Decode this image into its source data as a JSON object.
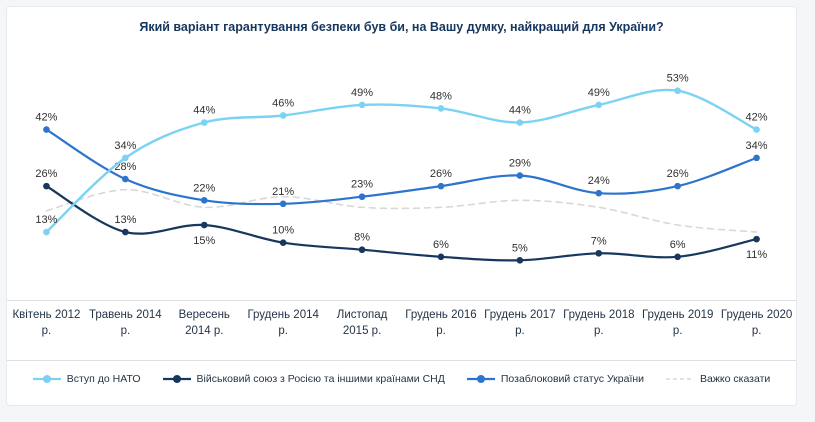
{
  "title": "Який варіант гарантування безпеки був би, на Вашу думку, найкращий для України?",
  "chart_data": {
    "type": "line",
    "title": "Який варіант гарантування безпеки був би, на Вашу думку, найкращий для України?",
    "xlabel": "",
    "ylabel": "",
    "ylim": [
      0,
      60
    ],
    "grid": false,
    "legend_position": "bottom",
    "label_suffix": "%",
    "categories": [
      "Квітень 2012 р.",
      "Травень 2014 р.",
      "Вересень 2014 р.",
      "Грудень 2014 р.",
      "Листопад 2015 р.",
      "Грудень 2016 р.",
      "Грудень 2017 р.",
      "Грудень 2018 р.",
      "Грудень 2019 р.",
      "Грудень 2020 р."
    ],
    "series": [
      {
        "name": "Вступ до НАТО",
        "color": "#7bd2f2",
        "style": "solid",
        "markers": true,
        "show_labels": true,
        "values": [
          13,
          34,
          44,
          46,
          49,
          48,
          44,
          49,
          53,
          42
        ],
        "labels_below": []
      },
      {
        "name": "Військовий союз з Росією та іншими країнами СНД",
        "color": "#17375e",
        "style": "solid",
        "markers": true,
        "show_labels": true,
        "values": [
          26,
          13,
          15,
          10,
          8,
          6,
          5,
          7,
          6,
          11
        ],
        "labels_below": [
          2,
          9
        ]
      },
      {
        "name": "Позаблоковий статус України",
        "color": "#2d74cd",
        "style": "solid",
        "markers": true,
        "show_labels": true,
        "values": [
          42,
          28,
          22,
          21,
          23,
          26,
          29,
          24,
          26,
          34
        ],
        "labels_below": []
      },
      {
        "name": "Важко сказати",
        "color": "#d8d8d8",
        "style": "dashed",
        "markers": false,
        "show_labels": false,
        "values": [
          19,
          25,
          20,
          23,
          20,
          20,
          22,
          20,
          15,
          13
        ],
        "labels_below": []
      }
    ]
  }
}
